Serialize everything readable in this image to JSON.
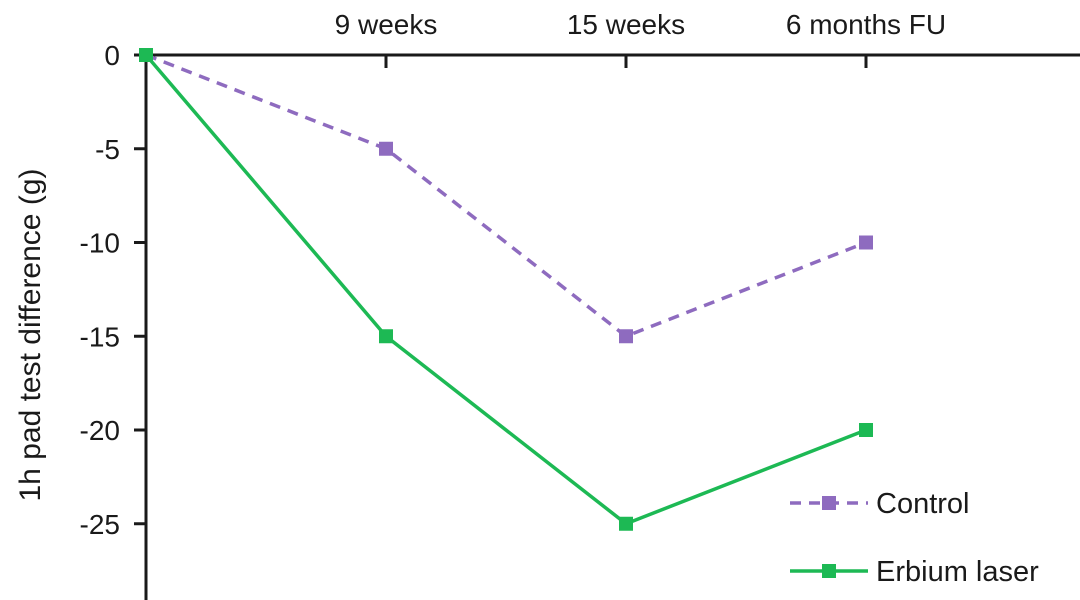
{
  "chart_data": {
    "type": "line",
    "categories": [
      "",
      "9 weeks",
      "15 weeks",
      "6 months FU"
    ],
    "ylabel": "1h pad test difference (g)",
    "xlabel": "",
    "ylim": [
      -29,
      0
    ],
    "yticks": [
      "0",
      "-5",
      "-10",
      "-15",
      "-20",
      "-25"
    ],
    "x_axis_position": "top",
    "grid": false,
    "legend_position": "bottom-right",
    "series": [
      {
        "name": "Control",
        "values": [
          0,
          -5,
          -15,
          -10
        ],
        "color": "#8e6bbf",
        "line_style": "dashed",
        "marker": "square"
      },
      {
        "name": "Erbium laser",
        "values": [
          0,
          -15,
          -25,
          -20
        ],
        "color": "#1db954",
        "line_style": "solid",
        "marker": "square"
      }
    ]
  }
}
